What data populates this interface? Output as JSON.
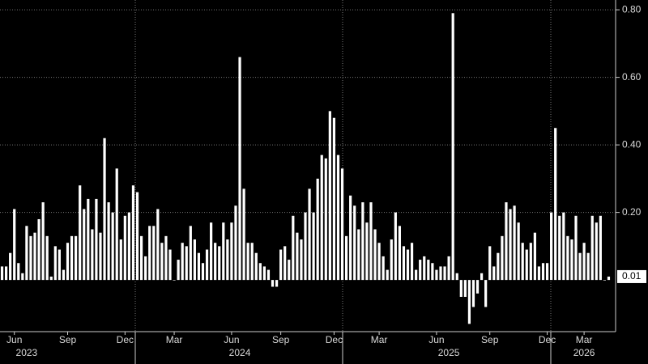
{
  "chart_data": {
    "type": "bar",
    "color": "#ffffff",
    "grid": true,
    "ylim": [
      -0.153,
      0.829
    ],
    "yticks": [
      {
        "value": 0.2,
        "label": "0.20"
      },
      {
        "value": 0.4,
        "label": "0.40"
      },
      {
        "value": 0.6,
        "label": "0.60"
      },
      {
        "value": 0.8,
        "label": "0.80"
      }
    ],
    "last_value": {
      "value": 0.01,
      "label": "0.01"
    },
    "categories": [
      null,
      null,
      null,
      "Jun",
      null,
      null,
      null,
      null,
      null,
      null,
      null,
      null,
      null,
      null,
      null,
      null,
      "Sep",
      null,
      null,
      null,
      null,
      null,
      null,
      null,
      null,
      null,
      null,
      null,
      null,
      null,
      "Dec",
      null,
      null,
      null,
      null,
      null,
      null,
      null,
      null,
      null,
      null,
      null,
      "Mar",
      null,
      null,
      null,
      null,
      null,
      null,
      null,
      null,
      null,
      null,
      null,
      null,
      null,
      "Jun",
      null,
      null,
      null,
      null,
      null,
      null,
      null,
      null,
      null,
      null,
      null,
      "Sep",
      null,
      null,
      null,
      null,
      null,
      null,
      null,
      null,
      null,
      null,
      null,
      null,
      "Dec",
      null,
      null,
      null,
      null,
      null,
      null,
      null,
      null,
      null,
      null,
      "Mar",
      null,
      null,
      null,
      null,
      null,
      null,
      null,
      null,
      null,
      null,
      null,
      null,
      null,
      "Jun",
      null,
      null,
      null,
      null,
      null,
      null,
      null,
      null,
      null,
      null,
      null,
      null,
      "Sep",
      null,
      null,
      null,
      null,
      null,
      null,
      null,
      null,
      null,
      null,
      null,
      null,
      null,
      "Dec",
      null,
      null,
      null,
      null,
      null,
      null,
      null,
      null,
      "Mar",
      null,
      null,
      null,
      null,
      null,
      null
    ],
    "year_labels": [
      null,
      null,
      null,
      null,
      null,
      null,
      "2023",
      null,
      null,
      null,
      null,
      null,
      null,
      null,
      null,
      null,
      null,
      null,
      null,
      null,
      null,
      null,
      null,
      null,
      null,
      null,
      null,
      null,
      null,
      null,
      null,
      null,
      null,
      null,
      null,
      null,
      null,
      null,
      null,
      null,
      null,
      null,
      null,
      null,
      null,
      null,
      null,
      null,
      null,
      null,
      null,
      null,
      null,
      null,
      null,
      null,
      null,
      null,
      "2024",
      null,
      null,
      null,
      null,
      null,
      null,
      null,
      null,
      null,
      null,
      null,
      null,
      null,
      null,
      null,
      null,
      null,
      null,
      null,
      null,
      null,
      null,
      null,
      null,
      null,
      null,
      null,
      null,
      null,
      null,
      null,
      null,
      null,
      null,
      null,
      null,
      null,
      null,
      null,
      null,
      null,
      null,
      null,
      null,
      null,
      null,
      null,
      null,
      null,
      null,
      "2025",
      null,
      null,
      null,
      null,
      null,
      null,
      null,
      null,
      null,
      null,
      null,
      null,
      null,
      null,
      null,
      null,
      null,
      null,
      null,
      null,
      null,
      null,
      null,
      null,
      null,
      null,
      null,
      null,
      null,
      null,
      null,
      null,
      "2026",
      null,
      null,
      null,
      null,
      null,
      null
    ],
    "values": [
      0.04,
      0.04,
      0.08,
      0.21,
      0.05,
      0.02,
      0.16,
      0.13,
      0.14,
      0.18,
      0.23,
      0.13,
      0.01,
      0.1,
      0.09,
      0.03,
      0.11,
      0.13,
      0.13,
      0.28,
      0.21,
      0.24,
      0.15,
      0.24,
      0.14,
      0.42,
      0.23,
      0.2,
      0.33,
      0.12,
      0.19,
      0.2,
      0.28,
      0.26,
      0.13,
      0.07,
      0.16,
      0.16,
      0.21,
      0.11,
      0.13,
      0.09,
      0.0,
      0.06,
      0.11,
      0.1,
      0.16,
      0.12,
      0.08,
      0.05,
      0.09,
      0.17,
      0.11,
      0.1,
      0.17,
      0.12,
      0.17,
      0.22,
      0.66,
      0.27,
      0.11,
      0.11,
      0.08,
      0.05,
      0.04,
      0.03,
      -0.02,
      -0.02,
      0.09,
      0.1,
      0.06,
      0.19,
      0.14,
      0.12,
      0.2,
      0.27,
      0.2,
      0.3,
      0.37,
      0.36,
      0.5,
      0.48,
      0.37,
      0.33,
      0.13,
      0.25,
      0.22,
      0.15,
      0.23,
      0.17,
      0.23,
      0.15,
      0.11,
      0.07,
      0.03,
      0.12,
      0.2,
      0.16,
      0.1,
      0.09,
      0.11,
      0.03,
      0.06,
      0.07,
      0.06,
      0.05,
      0.03,
      0.04,
      0.04,
      0.07,
      0.79,
      0.02,
      -0.05,
      -0.05,
      -0.13,
      -0.08,
      -0.04,
      0.02,
      -0.08,
      0.1,
      0.04,
      0.08,
      0.13,
      0.23,
      0.21,
      0.22,
      0.17,
      0.11,
      0.09,
      0.11,
      0.14,
      0.04,
      0.05,
      0.05,
      0.2,
      0.45,
      0.19,
      0.2,
      0.13,
      0.12,
      0.19,
      0.08,
      0.11,
      0.08,
      0.19,
      0.17,
      0.19,
      0.0,
      0.01
    ]
  }
}
